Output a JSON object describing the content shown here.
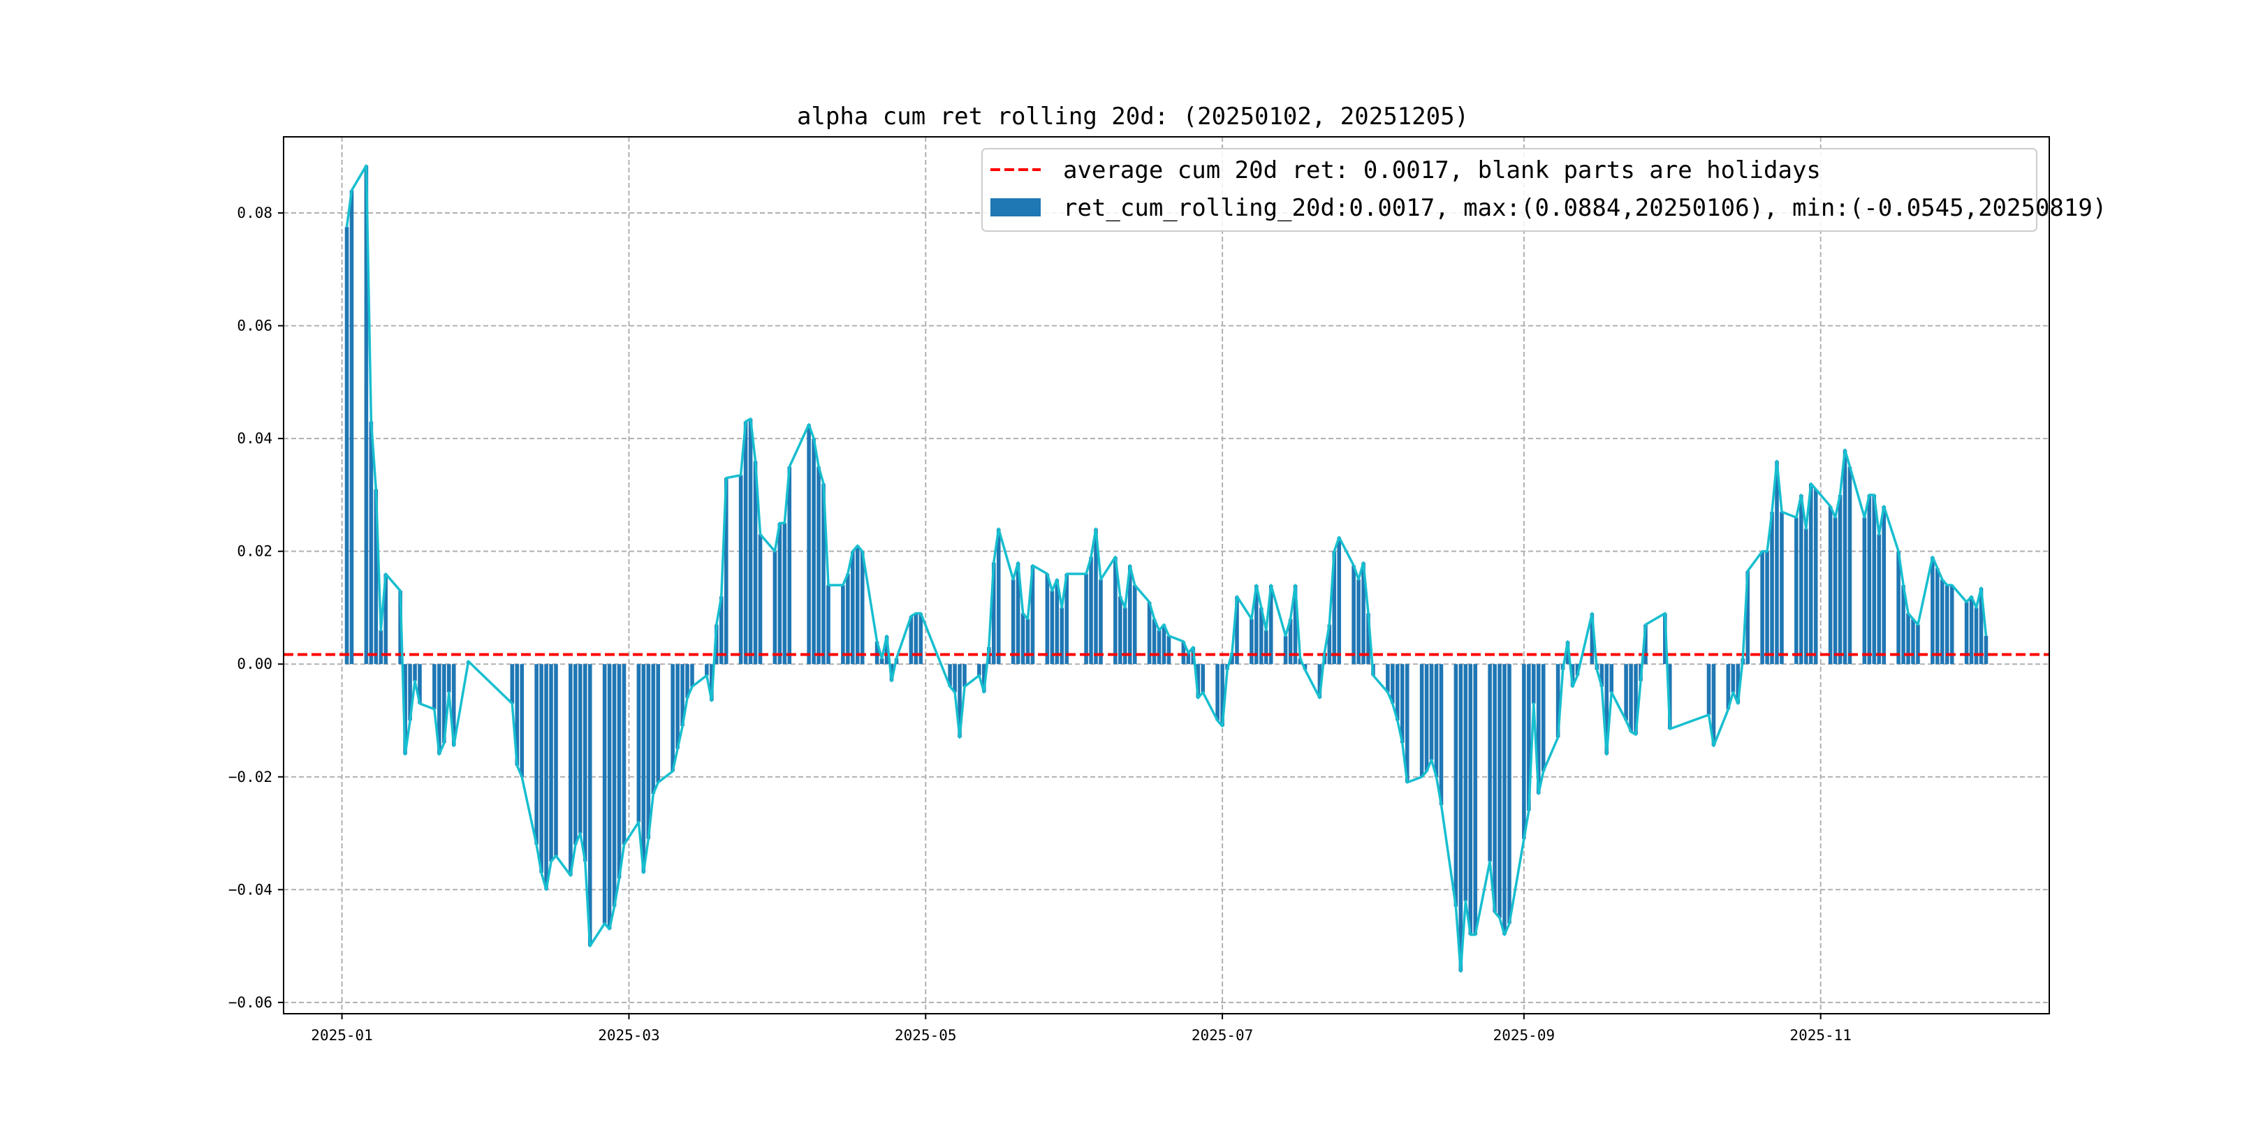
{
  "chart_data": {
    "type": "bar",
    "title": "alpha cum ret rolling 20d: (20250102, 20251205)",
    "xlabel": "",
    "ylabel": "",
    "grid": true,
    "legend_position": "top-right",
    "xlim": [
      "2024-12-20",
      "2025-12-18"
    ],
    "ylim": [
      -0.062,
      0.0935
    ],
    "xticks": [
      {
        "date": "2025-01-01",
        "label": "2025-01"
      },
      {
        "date": "2025-03-01",
        "label": "2025-03"
      },
      {
        "date": "2025-05-01",
        "label": "2025-05"
      },
      {
        "date": "2025-07-01",
        "label": "2025-07"
      },
      {
        "date": "2025-09-01",
        "label": "2025-09"
      },
      {
        "date": "2025-11-01",
        "label": "2025-11"
      }
    ],
    "yticks": [
      {
        "value": 0.08,
        "label": "0.08"
      },
      {
        "value": 0.06,
        "label": "0.06"
      },
      {
        "value": 0.04,
        "label": "0.04"
      },
      {
        "value": 0.02,
        "label": "0.02"
      },
      {
        "value": 0.0,
        "label": "0.00"
      },
      {
        "value": -0.02,
        "label": "−0.02"
      },
      {
        "value": -0.04,
        "label": "−0.04"
      },
      {
        "value": -0.06,
        "label": "−0.06"
      }
    ],
    "average_line": {
      "value": 0.0017,
      "label": "average cum 20d ret: 0.0017, blank parts are holidays",
      "color": "#ff0000"
    },
    "series": [
      {
        "name": "ret_cum_rolling_20d:0.0017, max:(0.0884,20250106), min:(-0.0545,20250819)",
        "bar_color": "#1f77b4",
        "line_color": "#17becf",
        "points": [
          [
            "2025-01-02",
            0.0775
          ],
          [
            "2025-01-03",
            0.084
          ],
          [
            "2025-01-06",
            0.0884
          ],
          [
            "2025-01-07",
            0.043
          ],
          [
            "2025-01-08",
            0.031
          ],
          [
            "2025-01-09",
            0.006
          ],
          [
            "2025-01-10",
            0.016
          ],
          [
            "2025-01-13",
            0.013
          ],
          [
            "2025-01-14",
            -0.016
          ],
          [
            "2025-01-15",
            -0.01
          ],
          [
            "2025-01-16",
            -0.003
          ],
          [
            "2025-01-17",
            -0.007
          ],
          [
            "2025-01-20",
            -0.008
          ],
          [
            "2025-01-21",
            -0.016
          ],
          [
            "2025-01-22",
            -0.014
          ],
          [
            "2025-01-23",
            -0.005
          ],
          [
            "2025-01-24",
            -0.0145
          ],
          [
            "2025-01-27",
            0.0005
          ],
          [
            "2025-02-05",
            -0.007
          ],
          [
            "2025-02-06",
            -0.018
          ],
          [
            "2025-02-07",
            -0.02
          ],
          [
            "2025-02-10",
            -0.032
          ],
          [
            "2025-02-11",
            -0.037
          ],
          [
            "2025-02-12",
            -0.04
          ],
          [
            "2025-02-13",
            -0.035
          ],
          [
            "2025-02-14",
            -0.034
          ],
          [
            "2025-02-17",
            -0.0375
          ],
          [
            "2025-02-18",
            -0.032
          ],
          [
            "2025-02-19",
            -0.03
          ],
          [
            "2025-02-20",
            -0.035
          ],
          [
            "2025-02-21",
            -0.05
          ],
          [
            "2025-02-24",
            -0.046
          ],
          [
            "2025-02-25",
            -0.047
          ],
          [
            "2025-02-26",
            -0.043
          ],
          [
            "2025-02-27",
            -0.038
          ],
          [
            "2025-02-28",
            -0.032
          ],
          [
            "2025-03-03",
            -0.028
          ],
          [
            "2025-03-04",
            -0.037
          ],
          [
            "2025-03-05",
            -0.031
          ],
          [
            "2025-03-06",
            -0.023
          ],
          [
            "2025-03-07",
            -0.021
          ],
          [
            "2025-03-10",
            -0.019
          ],
          [
            "2025-03-11",
            -0.015
          ],
          [
            "2025-03-12",
            -0.011
          ],
          [
            "2025-03-13",
            -0.006
          ],
          [
            "2025-03-14",
            -0.004
          ],
          [
            "2025-03-17",
            -0.002
          ],
          [
            "2025-03-18",
            -0.0065
          ],
          [
            "2025-03-19",
            0.007
          ],
          [
            "2025-03-20",
            0.012
          ],
          [
            "2025-03-21",
            0.033
          ],
          [
            "2025-03-24",
            0.0335
          ],
          [
            "2025-03-25",
            0.043
          ],
          [
            "2025-03-26",
            0.0435
          ],
          [
            "2025-03-27",
            0.036
          ],
          [
            "2025-03-28",
            0.023
          ],
          [
            "2025-03-31",
            0.02
          ],
          [
            "2025-04-01",
            0.025
          ],
          [
            "2025-04-02",
            0.025
          ],
          [
            "2025-04-03",
            0.035
          ],
          [
            "2025-04-07",
            0.0425
          ],
          [
            "2025-04-08",
            0.04
          ],
          [
            "2025-04-09",
            0.035
          ],
          [
            "2025-04-10",
            0.032
          ],
          [
            "2025-04-11",
            0.014
          ],
          [
            "2025-04-14",
            0.014
          ],
          [
            "2025-04-15",
            0.016
          ],
          [
            "2025-04-16",
            0.02
          ],
          [
            "2025-04-17",
            0.021
          ],
          [
            "2025-04-18",
            0.02
          ],
          [
            "2025-04-21",
            0.004
          ],
          [
            "2025-04-22",
            0.001
          ],
          [
            "2025-04-23",
            0.005
          ],
          [
            "2025-04-24",
            -0.003
          ],
          [
            "2025-04-25",
            0.001
          ],
          [
            "2025-04-28",
            0.0085
          ],
          [
            "2025-04-29",
            0.009
          ],
          [
            "2025-04-30",
            0.009
          ],
          [
            "2025-05-06",
            -0.004
          ],
          [
            "2025-05-07",
            -0.005
          ],
          [
            "2025-05-08",
            -0.013
          ],
          [
            "2025-05-09",
            -0.004
          ],
          [
            "2025-05-12",
            -0.002
          ],
          [
            "2025-05-13",
            -0.005
          ],
          [
            "2025-05-14",
            0.003
          ],
          [
            "2025-05-15",
            0.018
          ],
          [
            "2025-05-16",
            0.024
          ],
          [
            "2025-05-19",
            0.015
          ],
          [
            "2025-05-20",
            0.018
          ],
          [
            "2025-05-21",
            0.009
          ],
          [
            "2025-05-22",
            0.008
          ],
          [
            "2025-05-23",
            0.0175
          ],
          [
            "2025-05-26",
            0.016
          ],
          [
            "2025-05-27",
            0.013
          ],
          [
            "2025-05-28",
            0.015
          ],
          [
            "2025-05-29",
            0.01
          ],
          [
            "2025-05-30",
            0.016
          ],
          [
            "2025-06-03",
            0.016
          ],
          [
            "2025-06-04",
            0.019
          ],
          [
            "2025-06-05",
            0.024
          ],
          [
            "2025-06-06",
            0.015
          ],
          [
            "2025-06-09",
            0.019
          ],
          [
            "2025-06-10",
            0.012
          ],
          [
            "2025-06-11",
            0.01
          ],
          [
            "2025-06-12",
            0.0175
          ],
          [
            "2025-06-13",
            0.014
          ],
          [
            "2025-06-16",
            0.011
          ],
          [
            "2025-06-17",
            0.008
          ],
          [
            "2025-06-18",
            0.006
          ],
          [
            "2025-06-19",
            0.007
          ],
          [
            "2025-06-20",
            0.005
          ],
          [
            "2025-06-23",
            0.004
          ],
          [
            "2025-06-24",
            0.002
          ],
          [
            "2025-06-25",
            0.003
          ],
          [
            "2025-06-26",
            -0.006
          ],
          [
            "2025-06-27",
            -0.005
          ],
          [
            "2025-06-30",
            -0.01
          ],
          [
            "2025-07-01",
            -0.011
          ],
          [
            "2025-07-02",
            -0.001
          ],
          [
            "2025-07-03",
            0.002
          ],
          [
            "2025-07-04",
            0.012
          ],
          [
            "2025-07-07",
            0.008
          ],
          [
            "2025-07-08",
            0.014
          ],
          [
            "2025-07-09",
            0.01
          ],
          [
            "2025-07-10",
            0.006
          ],
          [
            "2025-07-11",
            0.014
          ],
          [
            "2025-07-14",
            0.005
          ],
          [
            "2025-07-15",
            0.008
          ],
          [
            "2025-07-16",
            0.014
          ],
          [
            "2025-07-17",
            0.001
          ],
          [
            "2025-07-18",
            -0.001
          ],
          [
            "2025-07-21",
            -0.006
          ],
          [
            "2025-07-22",
            0.002
          ],
          [
            "2025-07-23",
            0.007
          ],
          [
            "2025-07-24",
            0.02
          ],
          [
            "2025-07-25",
            0.0225
          ],
          [
            "2025-07-28",
            0.0175
          ],
          [
            "2025-07-29",
            0.015
          ],
          [
            "2025-07-30",
            0.018
          ],
          [
            "2025-07-31",
            0.009
          ],
          [
            "2025-08-01",
            -0.002
          ],
          [
            "2025-08-04",
            -0.005
          ],
          [
            "2025-08-05",
            -0.007
          ],
          [
            "2025-08-06",
            -0.01
          ],
          [
            "2025-08-07",
            -0.014
          ],
          [
            "2025-08-08",
            -0.021
          ],
          [
            "2025-08-11",
            -0.02
          ],
          [
            "2025-08-12",
            -0.019
          ],
          [
            "2025-08-13",
            -0.017
          ],
          [
            "2025-08-14",
            -0.02
          ],
          [
            "2025-08-15",
            -0.025
          ],
          [
            "2025-08-18",
            -0.043
          ],
          [
            "2025-08-19",
            -0.0545
          ],
          [
            "2025-08-20",
            -0.042
          ],
          [
            "2025-08-21",
            -0.048
          ],
          [
            "2025-08-22",
            -0.048
          ],
          [
            "2025-08-25",
            -0.035
          ],
          [
            "2025-08-26",
            -0.044
          ],
          [
            "2025-08-27",
            -0.045
          ],
          [
            "2025-08-28",
            -0.048
          ],
          [
            "2025-08-29",
            -0.046
          ],
          [
            "2025-09-01",
            -0.031
          ],
          [
            "2025-09-02",
            -0.026
          ],
          [
            "2025-09-03",
            -0.007
          ],
          [
            "2025-09-04",
            -0.023
          ],
          [
            "2025-09-05",
            -0.019
          ],
          [
            "2025-09-08",
            -0.013
          ],
          [
            "2025-09-09",
            -0.001
          ],
          [
            "2025-09-10",
            0.004
          ],
          [
            "2025-09-11",
            -0.004
          ],
          [
            "2025-09-12",
            -0.002
          ],
          [
            "2025-09-15",
            0.009
          ],
          [
            "2025-09-16",
            -0.001
          ],
          [
            "2025-09-17",
            -0.004
          ],
          [
            "2025-09-18",
            -0.016
          ],
          [
            "2025-09-19",
            -0.005
          ],
          [
            "2025-09-22",
            -0.01
          ],
          [
            "2025-09-23",
            -0.012
          ],
          [
            "2025-09-24",
            -0.0125
          ],
          [
            "2025-09-25",
            -0.003
          ],
          [
            "2025-09-26",
            0.007
          ],
          [
            "2025-09-30",
            0.009
          ],
          [
            "2025-10-01",
            -0.0115
          ],
          [
            "2025-10-09",
            -0.009
          ],
          [
            "2025-10-10",
            -0.0145
          ],
          [
            "2025-10-13",
            -0.008
          ],
          [
            "2025-10-14",
            -0.005
          ],
          [
            "2025-10-15",
            -0.007
          ],
          [
            "2025-10-16",
            0.001
          ],
          [
            "2025-10-17",
            0.0165
          ],
          [
            "2025-10-20",
            0.02
          ],
          [
            "2025-10-21",
            0.02
          ],
          [
            "2025-10-22",
            0.027
          ],
          [
            "2025-10-23",
            0.036
          ],
          [
            "2025-10-24",
            0.027
          ],
          [
            "2025-10-27",
            0.026
          ],
          [
            "2025-10-28",
            0.03
          ],
          [
            "2025-10-29",
            0.024
          ],
          [
            "2025-10-30",
            0.032
          ],
          [
            "2025-10-31",
            0.031
          ],
          [
            "2025-11-03",
            0.028
          ],
          [
            "2025-11-04",
            0.026
          ],
          [
            "2025-11-05",
            0.03
          ],
          [
            "2025-11-06",
            0.038
          ],
          [
            "2025-11-07",
            0.035
          ],
          [
            "2025-11-10",
            0.026
          ],
          [
            "2025-11-11",
            0.03
          ],
          [
            "2025-11-12",
            0.03
          ],
          [
            "2025-11-13",
            0.023
          ],
          [
            "2025-11-14",
            0.028
          ],
          [
            "2025-11-17",
            0.02
          ],
          [
            "2025-11-18",
            0.014
          ],
          [
            "2025-11-19",
            0.009
          ],
          [
            "2025-11-20",
            0.008
          ],
          [
            "2025-11-21",
            0.007
          ],
          [
            "2025-11-24",
            0.019
          ],
          [
            "2025-11-25",
            0.017
          ],
          [
            "2025-11-26",
            0.015
          ],
          [
            "2025-11-27",
            0.014
          ],
          [
            "2025-11-28",
            0.014
          ],
          [
            "2025-12-01",
            0.011
          ],
          [
            "2025-12-02",
            0.012
          ],
          [
            "2025-12-03",
            0.01
          ],
          [
            "2025-12-04",
            0.0135
          ],
          [
            "2025-12-05",
            0.005
          ]
        ]
      }
    ]
  }
}
